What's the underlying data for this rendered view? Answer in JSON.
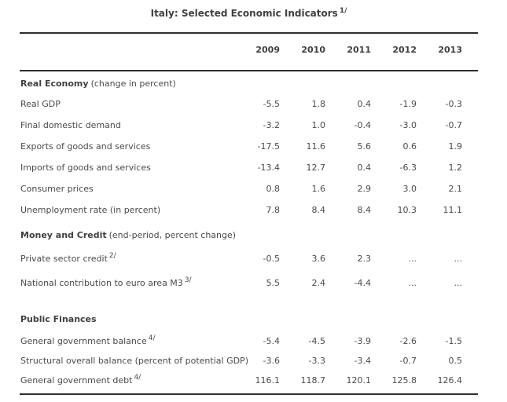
{
  "title": {
    "text": "Italy: Selected Economic Indicators",
    "sup": "1/"
  },
  "table": {
    "year_headers": [
      "2009",
      "2010",
      "2011",
      "2012",
      "2013"
    ],
    "sections": [
      {
        "title": "Real Economy",
        "subtitle": "(change in percent)",
        "rows": [
          {
            "label": "Real GDP",
            "sup": "",
            "values": [
              "-5.5",
              "1.8",
              "0.4",
              "-1.9",
              "-0.3"
            ]
          },
          {
            "label": "Final domestic demand",
            "sup": "",
            "values": [
              "-3.2",
              "1.0",
              "-0.4",
              "-3.0",
              "-0.7"
            ]
          },
          {
            "label": "Exports of goods and services",
            "sup": "",
            "values": [
              "-17.5",
              "11.6",
              "5.6",
              "0.6",
              "1.9"
            ]
          },
          {
            "label": "Imports of goods and services",
            "sup": "",
            "values": [
              "-13.4",
              "12.7",
              "0.4",
              "-6.3",
              "1.2"
            ]
          },
          {
            "label": "Consumer prices",
            "sup": "",
            "values": [
              "0.8",
              "1.6",
              "2.9",
              "3.0",
              "2.1"
            ]
          },
          {
            "label": "Unemployment rate (in percent)",
            "sup": "",
            "values": [
              "7.8",
              "8.4",
              "8.4",
              "10.3",
              "11.1"
            ]
          }
        ]
      },
      {
        "title": "Money and Credit",
        "subtitle": "(end-period, percent change)",
        "rows": [
          {
            "label": "Private sector credit",
            "sup": "2/",
            "values": [
              "-0.5",
              "3.6",
              "2.3",
              "...",
              "..."
            ]
          },
          {
            "label": "National contribution to euro area M3",
            "sup": "3/",
            "values": [
              "5.5",
              "2.4",
              "-4.4",
              "...",
              "..."
            ]
          }
        ]
      },
      {
        "title": "Public Finances",
        "subtitle": "",
        "rows": [
          {
            "label": "General government balance",
            "sup": "4/",
            "values": [
              "-5.4",
              "-4.5",
              "-3.9",
              "-2.6",
              "-1.5"
            ]
          },
          {
            "label": "Structural overall balance (percent of potential GDP)",
            "sup": "",
            "values": [
              "-3.6",
              "-3.3",
              "-3.4",
              "-0.7",
              "0.5"
            ]
          },
          {
            "label": "General government debt",
            "sup": "4/",
            "values": [
              "116.1",
              "118.7",
              "120.1",
              "125.8",
              "126.4"
            ]
          }
        ]
      }
    ]
  },
  "colors": {
    "text": "#4a4a4a",
    "heading_text": "#404040",
    "border": "#2e2e2e",
    "background": "#ffffff"
  }
}
